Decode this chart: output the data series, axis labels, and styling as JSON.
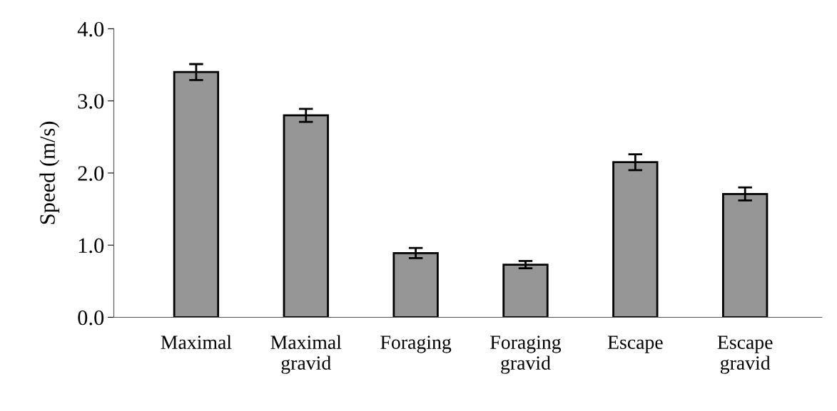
{
  "chart_data": {
    "type": "bar",
    "ylabel": "Speed (m/s)",
    "categories": [
      "Maximal",
      "Maximal\ngravid",
      "Foraging",
      "Foraging\ngravid",
      "Escape",
      "Escape\ngravid"
    ],
    "values": [
      3.4,
      2.8,
      0.89,
      0.73,
      2.15,
      1.71
    ],
    "errors": [
      0.11,
      0.09,
      0.07,
      0.05,
      0.11,
      0.09
    ],
    "color": "#969696",
    "ylim": [
      0,
      4
    ],
    "yticks": [
      {
        "value": 0,
        "label": "0.0"
      },
      {
        "value": 1,
        "label": "1.0"
      },
      {
        "value": 2,
        "label": "2.0"
      },
      {
        "value": 3,
        "label": "3.0"
      },
      {
        "value": 4,
        "label": "4.0"
      }
    ],
    "grid": false
  }
}
